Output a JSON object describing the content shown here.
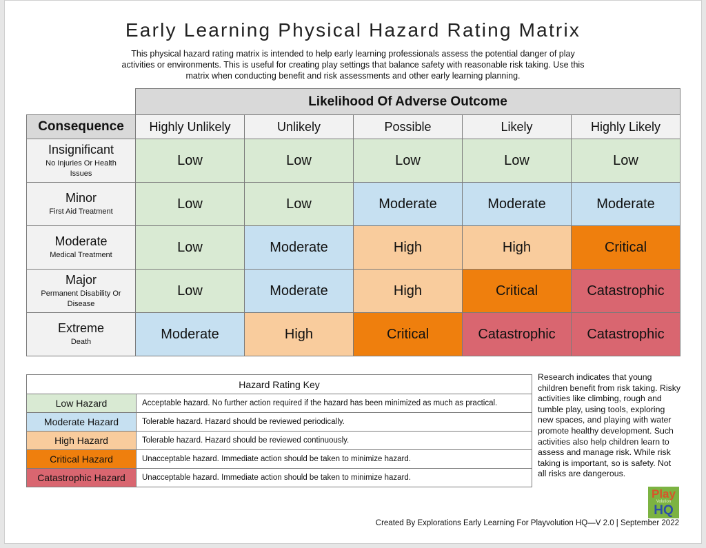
{
  "title": "Early Learning Physical Hazard Rating Matrix",
  "intro": "This physical hazard rating matrix is intended to help early learning professionals assess the potential danger of play activities or environments. This is useful for creating play settings that balance safety with reasonable risk taking. Use this matrix when conducting benefit and risk assessments and other early learning planning.",
  "matrix": {
    "likelihood_header": "Likelihood Of Adverse Outcome",
    "consequence_header": "Consequence",
    "columns": [
      "Highly Unlikely",
      "Unlikely",
      "Possible",
      "Likely",
      "Highly Likely"
    ],
    "rows": [
      {
        "name": "Insignificant",
        "desc": "No Injuries Or Health Issues",
        "values": [
          "Low",
          "Low",
          "Low",
          "Low",
          "Low"
        ]
      },
      {
        "name": "Minor",
        "desc": "First Aid Treatment",
        "values": [
          "Low",
          "Low",
          "Moderate",
          "Moderate",
          "Moderate"
        ]
      },
      {
        "name": "Moderate",
        "desc": "Medical Treatment",
        "values": [
          "Low",
          "Moderate",
          "High",
          "High",
          "Critical"
        ]
      },
      {
        "name": "Major",
        "desc": "Permanent Disability Or Disease",
        "values": [
          "Low",
          "Moderate",
          "High",
          "Critical",
          "Catastrophic"
        ]
      },
      {
        "name": "Extreme",
        "desc": "Death",
        "values": [
          "Moderate",
          "High",
          "Critical",
          "Catastrophic",
          "Catastrophic"
        ]
      }
    ]
  },
  "colors": {
    "Low": "#d9ead3",
    "Moderate": "#c6e0f1",
    "High": "#f9cc9d",
    "Critical": "#ef7f0d",
    "Catastrophic": "#d96670"
  },
  "key": {
    "title": "Hazard Rating Key",
    "items": [
      {
        "level": "Low",
        "label": "Low Hazard",
        "desc": "Acceptable hazard.  No further action required if the hazard has been minimized as much as practical."
      },
      {
        "level": "Moderate",
        "label": "Moderate Hazard",
        "desc": "Tolerable hazard.  Hazard should be reviewed periodically."
      },
      {
        "level": "High",
        "label": "High Hazard",
        "desc": "Tolerable hazard.  Hazard should be reviewed continuously."
      },
      {
        "level": "Critical",
        "label": "Critical Hazard",
        "desc": "Unacceptable hazard.  Immediate action should be taken to minimize hazard."
      },
      {
        "level": "Catastrophic",
        "label": "Catastrophic Hazard",
        "desc": "Unacceptable hazard.  Immediate action should be taken to minimize hazard."
      }
    ]
  },
  "side_text": "Research indicates that young children benefit from risk taking. Risky activities like climbing, rough and tumble play, using tools, exploring new spaces, and playing with water promote healthy development. Such activities also help children learn to assess and manage risk. While risk taking is important, so is safety. Not all risks are dangerous.",
  "logo": {
    "line1": "Play",
    "line2": "Volution",
    "line3": "HQ"
  },
  "footer": "Created By Explorations Early Learning For Playvolution HQ—V 2.0 | September 2022"
}
